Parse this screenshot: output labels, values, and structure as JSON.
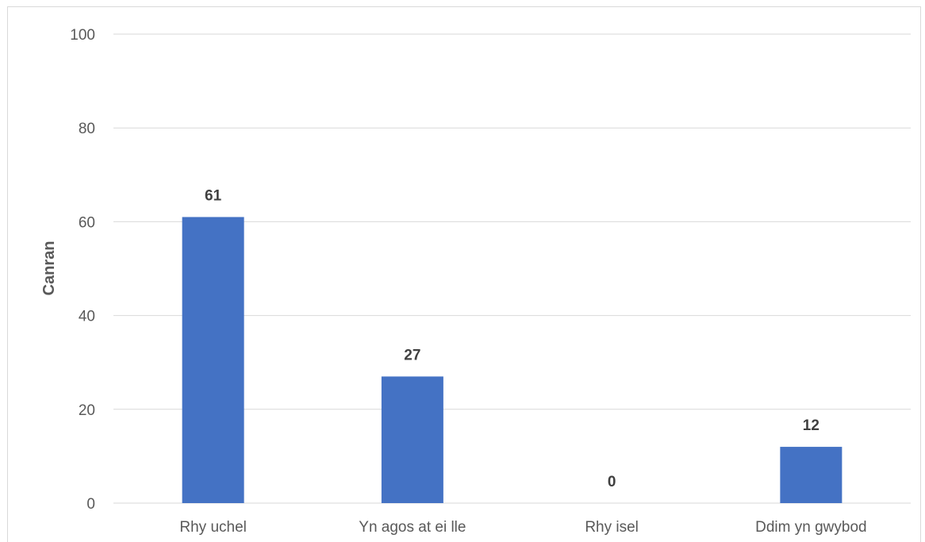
{
  "chart_data": {
    "type": "bar",
    "title": "",
    "xlabel": "",
    "ylabel": "Canran",
    "categories": [
      "Rhy uchel",
      "Yn agos at ei lle",
      "Rhy isel",
      "Ddim yn gwybod"
    ],
    "values": [
      61,
      27,
      0,
      12
    ],
    "data_labels": [
      "61",
      "27",
      "0",
      "12"
    ],
    "ylim": [
      0,
      100
    ],
    "yticks": [
      0,
      20,
      40,
      60,
      80,
      100
    ],
    "ytick_labels": [
      "0",
      "20",
      "40",
      "60",
      "80",
      "100"
    ],
    "grid": true,
    "legend": "none",
    "bar_color": "#4472c4"
  }
}
